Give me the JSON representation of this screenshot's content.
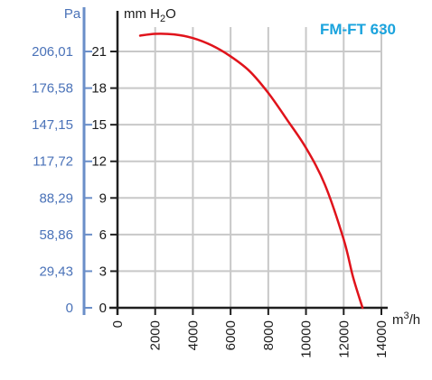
{
  "chart_data": {
    "type": "line",
    "title": "FM-FT 630",
    "pa_axis_label": "Pa",
    "ylabel_main": "mm H",
    "ylabel_sub": "2",
    "ylabel_tail": "O",
    "xlabel_main": "m",
    "xlabel_sup": "3",
    "xlabel_tail": "/h",
    "xlim": [
      0,
      14000
    ],
    "ylim": [
      0,
      23
    ],
    "x_ticks": [
      0,
      2000,
      4000,
      6000,
      8000,
      10000,
      12000,
      14000
    ],
    "x_tick_labels": [
      "0",
      "2000",
      "4000",
      "6000",
      "8000",
      "10000",
      "12000",
      "14000"
    ],
    "y_ticks": [
      0,
      3,
      6,
      9,
      12,
      15,
      18,
      21
    ],
    "y_tick_labels": [
      "0",
      "3",
      "6",
      "9",
      "12",
      "15",
      "18",
      "21"
    ],
    "pa_ticks": [
      0,
      3,
      6,
      9,
      12,
      15,
      18,
      21
    ],
    "pa_tick_labels": [
      "0",
      "29,43",
      "58,86",
      "88,29",
      "117,72",
      "147,15",
      "176,58",
      "206,01"
    ],
    "grid": true,
    "series": [
      {
        "x": [
          1200,
          2000,
          3000,
          4000,
          5000,
          6000,
          7000,
          8000,
          9000,
          10000,
          11000,
          12000,
          12500,
          13000
        ],
        "y": [
          22.3,
          22.45,
          22.4,
          22.1,
          21.5,
          20.6,
          19.4,
          17.6,
          15.4,
          13.1,
          10.1,
          5.6,
          2.5,
          0
        ],
        "color": "#e0131b"
      }
    ],
    "colors": {
      "pa_axis": "#6a8ec8",
      "pa_text": "#4a72b8",
      "main_axis": "#1f1f1f",
      "grid": "#c8c8c8",
      "title": "#1aa3dd"
    }
  }
}
